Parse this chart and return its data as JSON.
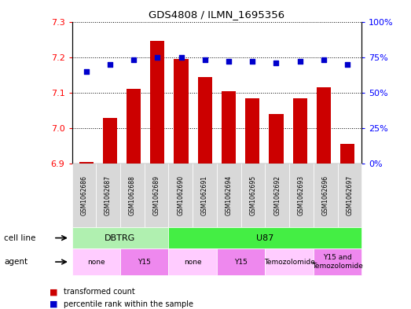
{
  "title": "GDS4808 / ILMN_1695356",
  "samples": [
    "GSM1062686",
    "GSM1062687",
    "GSM1062688",
    "GSM1062689",
    "GSM1062690",
    "GSM1062691",
    "GSM1062694",
    "GSM1062695",
    "GSM1062692",
    "GSM1062693",
    "GSM1062696",
    "GSM1062697"
  ],
  "bar_values": [
    6.905,
    7.03,
    7.11,
    7.245,
    7.195,
    7.145,
    7.105,
    7.085,
    7.04,
    7.085,
    7.115,
    6.955
  ],
  "bar_base": 6.9,
  "dot_values": [
    65,
    70,
    73,
    75,
    75,
    73,
    72,
    72,
    71,
    72,
    73,
    70
  ],
  "ylim_left": [
    6.9,
    7.3
  ],
  "ylim_right": [
    0,
    100
  ],
  "yticks_left": [
    6.9,
    7.0,
    7.1,
    7.2,
    7.3
  ],
  "yticks_right": [
    0,
    25,
    50,
    75,
    100
  ],
  "ytick_labels_right": [
    "0%",
    "25%",
    "50%",
    "75%",
    "100%"
  ],
  "bar_color": "#cc0000",
  "dot_color": "#0000cc",
  "sample_bg_color": "#d8d8d8",
  "cell_line_groups": [
    {
      "label": "DBTRG",
      "start": 0,
      "end": 4,
      "color": "#b0f0b0"
    },
    {
      "label": "U87",
      "start": 4,
      "end": 12,
      "color": "#44ee44"
    }
  ],
  "agent_groups": [
    {
      "label": "none",
      "start": 0,
      "end": 2,
      "color": "#ffccff"
    },
    {
      "label": "Y15",
      "start": 2,
      "end": 4,
      "color": "#ee88ee"
    },
    {
      "label": "none",
      "start": 4,
      "end": 6,
      "color": "#ffccff"
    },
    {
      "label": "Y15",
      "start": 6,
      "end": 8,
      "color": "#ee88ee"
    },
    {
      "label": "Temozolomide",
      "start": 8,
      "end": 10,
      "color": "#ffccff"
    },
    {
      "label": "Y15 and\nTemozolomide",
      "start": 10,
      "end": 12,
      "color": "#ee88ee"
    }
  ],
  "legend_items": [
    {
      "label": "transformed count",
      "color": "#cc0000"
    },
    {
      "label": "percentile rank within the sample",
      "color": "#0000cc"
    }
  ]
}
